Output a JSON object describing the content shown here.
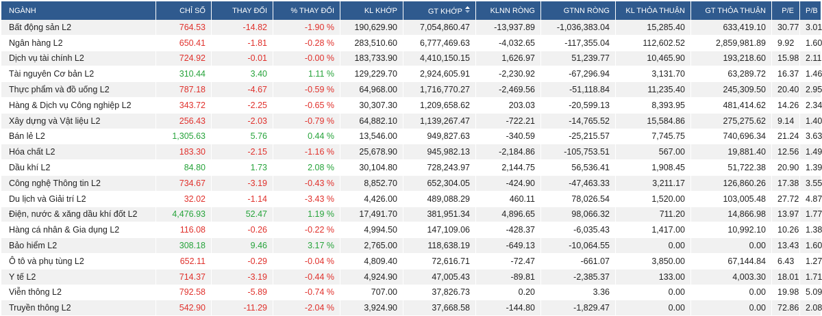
{
  "colors": {
    "header_bg": "#2f5a8e",
    "up": "#26a33a",
    "down": "#e0302b",
    "stripe": "#f1f1f1"
  },
  "headers": {
    "name": "NGÀNH",
    "index": "CHỈ SỐ",
    "change": "THAY ĐỔI",
    "pct": "% THAY ĐỔI",
    "kl_khop": "KL KHỚP",
    "gt_khop": "GT KHỚP",
    "klnn": "KLNN RÒNG",
    "gtnn": "GTNN RÒNG",
    "kl_tt": "KL THỎA THUẬN",
    "gt_tt": "GT THỎA THUẬN",
    "pe": "P/E",
    "pb": "P/B"
  },
  "sort_icon": "sort-up-down-icon",
  "rows": [
    {
      "name": "Bất động sản L2",
      "trend": "down",
      "index": "764.53",
      "change": "-14.82",
      "pct": "-1.90 %",
      "kl_khop": "190,629.90",
      "gt_khop": "7,054,860.47",
      "klnn": "-13,937.89",
      "gtnn": "-1,036,383.04",
      "kl_tt": "15,285.40",
      "gt_tt": "633,419.10",
      "pe": "30.77",
      "pb": "3.01"
    },
    {
      "name": "Ngân hàng L2",
      "trend": "down",
      "index": "650.41",
      "change": "-1.81",
      "pct": "-0.28 %",
      "kl_khop": "283,510.60",
      "gt_khop": "6,777,469.63",
      "klnn": "-4,032.65",
      "gtnn": "-117,355.04",
      "kl_tt": "112,602.52",
      "gt_tt": "2,859,981.89",
      "pe": "9.92",
      "pb": "1.60"
    },
    {
      "name": "Dịch vụ tài chính L2",
      "trend": "down",
      "index": "724.92",
      "change": "-0.01",
      "pct": "-0.00 %",
      "kl_khop": "183,733.90",
      "gt_khop": "4,410,150.15",
      "klnn": "1,626.97",
      "gtnn": "51,239.77",
      "kl_tt": "10,465.90",
      "gt_tt": "193,218.60",
      "pe": "15.98",
      "pb": "2.11"
    },
    {
      "name": "Tài nguyên Cơ bản L2",
      "trend": "up",
      "index": "310.44",
      "change": "3.40",
      "pct": "1.11 %",
      "kl_khop": "129,229.70",
      "gt_khop": "2,924,605.91",
      "klnn": "-2,230.92",
      "gtnn": "-67,296.94",
      "kl_tt": "3,131.70",
      "gt_tt": "63,289.72",
      "pe": "16.37",
      "pb": "1.46"
    },
    {
      "name": "Thực phẩm và đồ uống L2",
      "trend": "down",
      "index": "787.18",
      "change": "-4.67",
      "pct": "-0.59 %",
      "kl_khop": "64,968.00",
      "gt_khop": "1,716,770.27",
      "klnn": "-2,469.56",
      "gtnn": "-51,118.84",
      "kl_tt": "11,235.40",
      "gt_tt": "245,309.50",
      "pe": "20.40",
      "pb": "2.95"
    },
    {
      "name": "Hàng & Dịch vụ Công nghiệp L2",
      "trend": "down",
      "index": "343.72",
      "change": "-2.25",
      "pct": "-0.65 %",
      "kl_khop": "30,307.30",
      "gt_khop": "1,209,658.62",
      "klnn": "203.03",
      "gtnn": "-20,599.13",
      "kl_tt": "8,393.95",
      "gt_tt": "481,414.62",
      "pe": "14.26",
      "pb": "2.34"
    },
    {
      "name": "Xây dựng và Vật liệu L2",
      "trend": "down",
      "index": "256.43",
      "change": "-2.03",
      "pct": "-0.79 %",
      "kl_khop": "64,882.10",
      "gt_khop": "1,139,267.47",
      "klnn": "-722.21",
      "gtnn": "-14,765.52",
      "kl_tt": "15,584.86",
      "gt_tt": "275,275.62",
      "pe": "9.14",
      "pb": "1.40"
    },
    {
      "name": "Bán lẻ L2",
      "trend": "up",
      "index": "1,305.63",
      "change": "5.76",
      "pct": "0.44 %",
      "kl_khop": "13,546.00",
      "gt_khop": "949,827.63",
      "klnn": "-340.59",
      "gtnn": "-25,215.57",
      "kl_tt": "7,745.75",
      "gt_tt": "740,696.34",
      "pe": "21.24",
      "pb": "3.63"
    },
    {
      "name": "Hóa chất L2",
      "trend": "down",
      "index": "183.30",
      "change": "-2.15",
      "pct": "-1.16 %",
      "kl_khop": "25,678.90",
      "gt_khop": "945,982.13",
      "klnn": "-2,184.86",
      "gtnn": "-105,753.51",
      "kl_tt": "567.00",
      "gt_tt": "19,881.40",
      "pe": "12.56",
      "pb": "1.49"
    },
    {
      "name": "Dầu khí L2",
      "trend": "up",
      "index": "84.80",
      "change": "1.73",
      "pct": "2.08 %",
      "kl_khop": "30,104.80",
      "gt_khop": "728,243.97",
      "klnn": "2,144.75",
      "gtnn": "56,536.41",
      "kl_tt": "1,908.45",
      "gt_tt": "51,722.38",
      "pe": "20.90",
      "pb": "1.39"
    },
    {
      "name": "Công nghệ Thông tin L2",
      "trend": "down",
      "index": "734.67",
      "change": "-3.19",
      "pct": "-0.43 %",
      "kl_khop": "8,852.70",
      "gt_khop": "652,304.05",
      "klnn": "-424.90",
      "gtnn": "-47,463.33",
      "kl_tt": "3,211.17",
      "gt_tt": "126,860.26",
      "pe": "17.38",
      "pb": "3.55"
    },
    {
      "name": "Du lịch và Giải trí L2",
      "trend": "down",
      "index": "32.02",
      "change": "-1.14",
      "pct": "-3.43 %",
      "kl_khop": "4,426.00",
      "gt_khop": "489,088.29",
      "klnn": "460.11",
      "gtnn": "78,026.54",
      "kl_tt": "1,520.00",
      "gt_tt": "103,005.48",
      "pe": "27.72",
      "pb": "4.87"
    },
    {
      "name": "Điện, nước & xăng dầu khí đốt L2",
      "trend": "up",
      "index": "4,476.93",
      "change": "52.47",
      "pct": "1.19 %",
      "kl_khop": "17,491.70",
      "gt_khop": "381,951.34",
      "klnn": "4,896.65",
      "gtnn": "98,066.32",
      "kl_tt": "711.20",
      "gt_tt": "14,866.98",
      "pe": "13.97",
      "pb": "1.77"
    },
    {
      "name": "Hàng cá nhân & Gia dụng L2",
      "trend": "down",
      "index": "116.08",
      "change": "-0.26",
      "pct": "-0.22 %",
      "kl_khop": "4,994.50",
      "gt_khop": "147,109.06",
      "klnn": "-428.37",
      "gtnn": "-6,035.43",
      "kl_tt": "1,417.00",
      "gt_tt": "10,992.10",
      "pe": "10.26",
      "pb": "1.38"
    },
    {
      "name": "Bảo hiểm L2",
      "trend": "up",
      "index": "308.18",
      "change": "9.46",
      "pct": "3.17 %",
      "kl_khop": "2,765.00",
      "gt_khop": "118,638.19",
      "klnn": "-649.13",
      "gtnn": "-10,064.55",
      "kl_tt": "0.00",
      "gt_tt": "0.00",
      "pe": "13.43",
      "pb": "1.60"
    },
    {
      "name": "Ô tô và phụ tùng L2",
      "trend": "down",
      "index": "652.11",
      "change": "-0.29",
      "pct": "-0.04 %",
      "kl_khop": "4,809.40",
      "gt_khop": "72,616.71",
      "klnn": "-72.47",
      "gtnn": "-661.07",
      "kl_tt": "3,850.00",
      "gt_tt": "67,144.84",
      "pe": "6.43",
      "pb": "1.27"
    },
    {
      "name": "Y tế L2",
      "trend": "down",
      "index": "714.37",
      "change": "-3.19",
      "pct": "-0.44 %",
      "kl_khop": "4,924.90",
      "gt_khop": "47,005.43",
      "klnn": "-89.81",
      "gtnn": "-2,385.37",
      "kl_tt": "133.00",
      "gt_tt": "4,003.30",
      "pe": "18.01",
      "pb": "1.71"
    },
    {
      "name": "Viễn thông L2",
      "trend": "down",
      "index": "792.58",
      "change": "-5.89",
      "pct": "-0.74 %",
      "kl_khop": "707.00",
      "gt_khop": "37,826.73",
      "klnn": "0.20",
      "gtnn": "3.36",
      "kl_tt": "0.00",
      "gt_tt": "0.00",
      "pe": "19.98",
      "pb": "5.09"
    },
    {
      "name": "Truyền thông L2",
      "trend": "down",
      "index": "542.90",
      "change": "-11.29",
      "pct": "-2.04 %",
      "kl_khop": "3,924.90",
      "gt_khop": "37,668.58",
      "klnn": "-144.80",
      "gtnn": "-1,829.47",
      "kl_tt": "0.00",
      "gt_tt": "0.00",
      "pe": "72.86",
      "pb": "2.08"
    }
  ]
}
